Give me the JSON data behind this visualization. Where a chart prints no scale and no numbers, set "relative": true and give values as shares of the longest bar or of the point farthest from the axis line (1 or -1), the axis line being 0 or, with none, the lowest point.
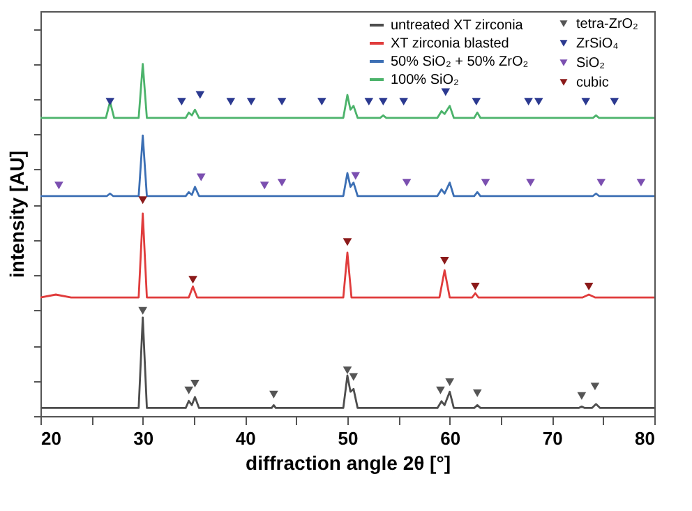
{
  "chart_data": {
    "type": "line",
    "xlabel": "diffraction angle 2θ [°]",
    "ylabel": "intensity [AU]",
    "relative": true,
    "xlim": [
      20,
      80
    ],
    "xticks": [
      20,
      {
        "value": 25,
        "label": null
      },
      30,
      {
        "value": 35,
        "label": null
      },
      40,
      {
        "value": 45,
        "label": null
      },
      50,
      {
        "value": 55,
        "label": null
      },
      60,
      {
        "value": 65,
        "label": null
      },
      70,
      {
        "value": 75,
        "label": null
      },
      80
    ],
    "grid": false,
    "legend": "top right",
    "series": [
      {
        "name": "untreated XT zirconia",
        "color": "#4d4d4d",
        "x": [
          20,
          29.6,
          30,
          30.4,
          34.2,
          34.5,
          34.8,
          35.1,
          35.5,
          42.6,
          42.8,
          43.0,
          49.6,
          50.0,
          50.3,
          50.6,
          51.0,
          58.8,
          59.2,
          59.5,
          60.0,
          60.4,
          62.4,
          62.7,
          63.0,
          72.6,
          72.9,
          73.2,
          73.9,
          74.3,
          74.7,
          80
        ],
        "values": [
          0.023,
          0.023,
          0.28,
          0.023,
          0.023,
          0.043,
          0.031,
          0.054,
          0.023,
          0.023,
          0.031,
          0.023,
          0.023,
          0.115,
          0.069,
          0.077,
          0.023,
          0.023,
          0.042,
          0.031,
          0.069,
          0.023,
          0.023,
          0.031,
          0.023,
          0.023,
          0.027,
          0.023,
          0.023,
          0.034,
          0.023,
          0.023
        ]
      },
      {
        "name": "XT zirconia blasted",
        "color": "#e03c3c",
        "x": [
          20,
          21.5,
          23,
          29.6,
          30,
          30.4,
          34.5,
          34.9,
          35.3,
          49.6,
          50.0,
          50.4,
          59.0,
          59.5,
          60.0,
          62.2,
          62.5,
          62.8,
          73.0,
          73.6,
          74.2,
          80
        ],
        "values": [
          0.337,
          0.345,
          0.337,
          0.337,
          0.575,
          0.337,
          0.337,
          0.368,
          0.337,
          0.337,
          0.464,
          0.337,
          0.337,
          0.414,
          0.337,
          0.337,
          0.349,
          0.337,
          0.337,
          0.345,
          0.337,
          0.337
        ]
      },
      {
        "name": "50% SiO₂ + 50% ZrO₂",
        "color": "#3c6fb4",
        "x": [
          20,
          26.5,
          26.8,
          27.1,
          29.6,
          30,
          30.4,
          34.2,
          34.5,
          34.8,
          35.1,
          35.5,
          49.6,
          50.0,
          50.3,
          50.6,
          51.0,
          58.8,
          59.2,
          59.5,
          60.0,
          60.4,
          62.4,
          62.7,
          63.0,
          74.0,
          74.3,
          74.6,
          80
        ],
        "values": [
          0.625,
          0.625,
          0.632,
          0.625,
          0.625,
          0.797,
          0.625,
          0.625,
          0.636,
          0.628,
          0.651,
          0.625,
          0.625,
          0.69,
          0.651,
          0.663,
          0.625,
          0.625,
          0.644,
          0.632,
          0.663,
          0.625,
          0.625,
          0.636,
          0.625,
          0.625,
          0.632,
          0.625,
          0.625
        ]
      },
      {
        "name": "100% SiO₂",
        "color": "#4cb36b",
        "x": [
          20,
          26.4,
          26.8,
          27.2,
          29.6,
          30,
          30.4,
          34.2,
          34.5,
          34.8,
          35.1,
          35.5,
          49.6,
          50.0,
          50.3,
          50.6,
          51.0,
          53.2,
          53.5,
          53.8,
          58.8,
          59.2,
          59.5,
          60.0,
          60.4,
          62.4,
          62.7,
          63.0,
          74.0,
          74.3,
          74.6,
          80
        ],
        "values": [
          0.847,
          0.847,
          0.893,
          0.847,
          0.847,
          1.0,
          0.847,
          0.847,
          0.862,
          0.854,
          0.87,
          0.847,
          0.847,
          0.912,
          0.87,
          0.881,
          0.847,
          0.847,
          0.854,
          0.847,
          0.847,
          0.866,
          0.858,
          0.881,
          0.847,
          0.847,
          0.862,
          0.847,
          0.847,
          0.854,
          0.847,
          0.847
        ]
      },
      {
        "name": "tetra-ZrO₂",
        "type": "scatter",
        "marker": "triangle",
        "color": "#555555",
        "x": [
          30,
          34.5,
          35.1,
          42.8,
          50.0,
          50.6,
          59.1,
          60,
          62.7,
          72.9,
          74.2
        ],
        "values": [
          0.299,
          0.073,
          0.092,
          0.061,
          0.13,
          0.111,
          0.073,
          0.096,
          0.065,
          0.057,
          0.084
        ]
      },
      {
        "name": "ZrSiO₄",
        "type": "scatter",
        "marker": "triangle",
        "color": "#2b3990",
        "x": [
          26.8,
          33.8,
          35.6,
          38.6,
          40.6,
          43.6,
          47.5,
          52.1,
          53.5,
          55.5,
          59.6,
          62.6,
          67.7,
          68.7,
          73.3,
          76.1
        ],
        "values": [
          0.893,
          0.893,
          0.912,
          0.893,
          0.893,
          0.893,
          0.893,
          0.893,
          0.893,
          0.893,
          0.92,
          0.893,
          0.893,
          0.893,
          0.893,
          0.893
        ]
      },
      {
        "name": "SiO₂",
        "type": "scatter",
        "marker": "triangle",
        "color": "#7b4fb0",
        "x": [
          21.8,
          35.7,
          41.9,
          43.6,
          50.8,
          55.8,
          63.5,
          67.9,
          74.8,
          78.7
        ],
        "values": [
          0.655,
          0.678,
          0.655,
          0.663,
          0.682,
          0.663,
          0.663,
          0.663,
          0.663,
          0.663
        ]
      },
      {
        "name": "cubic",
        "type": "scatter",
        "marker": "triangle",
        "color": "#8b1a1a",
        "x": [
          30,
          34.9,
          50,
          59.5,
          62.5,
          73.6
        ],
        "values": [
          0.613,
          0.387,
          0.494,
          0.441,
          0.368,
          0.368
        ]
      }
    ]
  }
}
